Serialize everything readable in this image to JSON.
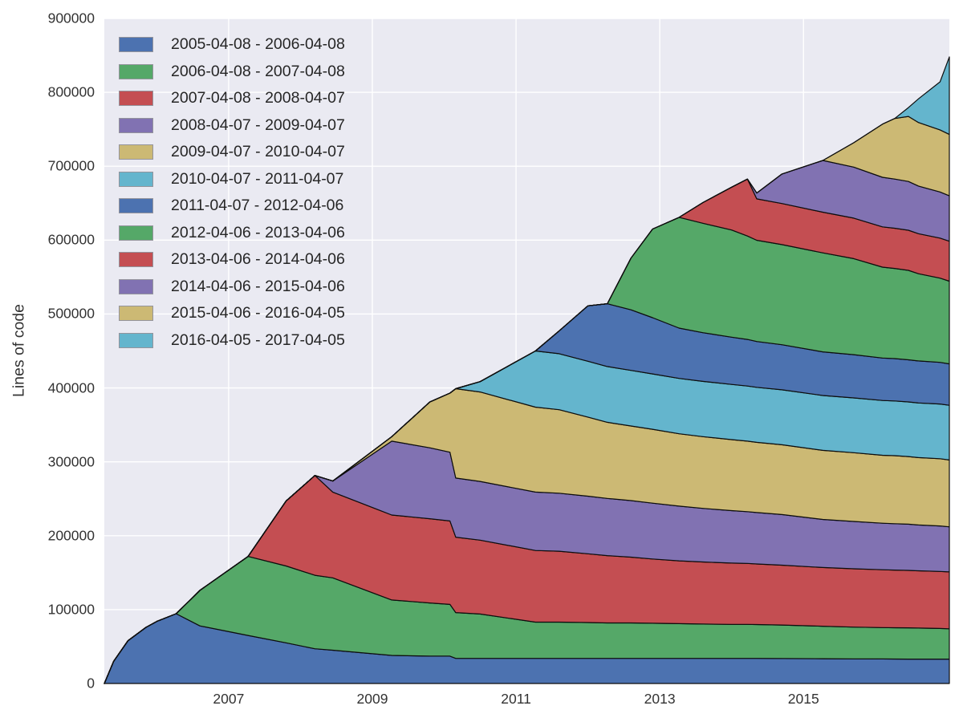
{
  "figure": {
    "plot_background": "#EAEAF2",
    "grid_color": "#FFFFFF",
    "band_edge_color": "#0d0d0d",
    "text_color": "#333333",
    "legend_swatch_border": "#94949c"
  },
  "axes": {
    "ylabel": "Lines of code",
    "x_domain": [
      2005.27,
      2017.03
    ],
    "y_domain": [
      0,
      900000
    ],
    "y_ticks": [
      {
        "value": 0,
        "label": "0"
      },
      {
        "value": 100000,
        "label": "100000"
      },
      {
        "value": 200000,
        "label": "200000"
      },
      {
        "value": 300000,
        "label": "300000"
      },
      {
        "value": 400000,
        "label": "400000"
      },
      {
        "value": 500000,
        "label": "500000"
      },
      {
        "value": 600000,
        "label": "600000"
      },
      {
        "value": 700000,
        "label": "700000"
      },
      {
        "value": 800000,
        "label": "800000"
      },
      {
        "value": 900000,
        "label": "900000"
      }
    ],
    "x_ticks": [
      {
        "value": 2007,
        "label": "2007"
      },
      {
        "value": 2009,
        "label": "2009"
      },
      {
        "value": 2011,
        "label": "2011"
      },
      {
        "value": 2013,
        "label": "2013"
      },
      {
        "value": 2015,
        "label": "2015"
      }
    ]
  },
  "chart_data": {
    "type": "area",
    "stacked": true,
    "title": "",
    "xlabel": "",
    "ylabel": "Lines of code",
    "grid": true,
    "legend_position": "upper left",
    "x_unit": "decimal_year",
    "x": [
      2005.27,
      2005.4,
      2005.6,
      2005.85,
      2006.0,
      2006.27,
      2006.6,
      2007.27,
      2007.8,
      2008.2,
      2008.45,
      2009.27,
      2009.8,
      2010.08,
      2010.16,
      2010.5,
      2011.27,
      2011.6,
      2012.0,
      2012.27,
      2012.6,
      2012.9,
      2013.27,
      2013.6,
      2014.0,
      2014.22,
      2014.35,
      2014.7,
      2015.27,
      2015.7,
      2016.1,
      2016.27,
      2016.46,
      2016.6,
      2016.9,
      2017.03
    ],
    "series": [
      {
        "name": "2005-04-08 - 2006-04-08",
        "color": "#4C72B0",
        "values": [
          0,
          30000,
          58000,
          76000,
          84000,
          94500,
          78000,
          65000,
          55000,
          47000,
          45000,
          38000,
          37000,
          37000,
          34000,
          34000,
          34000,
          34000,
          34000,
          34000,
          34000,
          34000,
          34000,
          34000,
          34000,
          34000,
          34000,
          33800,
          33500,
          33300,
          33200,
          33100,
          33000,
          33000,
          33000,
          33000
        ]
      },
      {
        "name": "2006-04-08 - 2007-04-08",
        "color": "#55A868",
        "values": [
          0,
          0,
          0,
          0,
          0,
          0,
          48000,
          107000,
          104000,
          99500,
          98000,
          75000,
          72000,
          70000,
          62000,
          60000,
          49000,
          49000,
          48500,
          48000,
          48000,
          47500,
          47000,
          46500,
          46000,
          46000,
          45800,
          45300,
          44000,
          43000,
          42500,
          42400,
          42300,
          42000,
          41500,
          41000
        ]
      },
      {
        "name": "2007-04-08 - 2008-04-07",
        "color": "#C44E52",
        "values": [
          0,
          0,
          0,
          0,
          0,
          0,
          0,
          0,
          88000,
          135000,
          116000,
          115000,
          114000,
          113000,
          102000,
          100000,
          97000,
          96000,
          93000,
          91000,
          89000,
          87000,
          85000,
          84000,
          83000,
          82500,
          82000,
          81000,
          79500,
          79000,
          78200,
          78000,
          77800,
          77500,
          77200,
          77000
        ]
      },
      {
        "name": "2008-04-07 - 2009-04-07",
        "color": "#8172B2",
        "values": [
          0,
          0,
          0,
          0,
          0,
          0,
          0,
          0,
          0,
          0,
          15000,
          100000,
          96000,
          93000,
          80000,
          79500,
          79000,
          78500,
          78000,
          77500,
          76500,
          75500,
          74000,
          72500,
          71000,
          70000,
          69500,
          68500,
          65000,
          64000,
          63000,
          62800,
          62500,
          62000,
          61500,
          61000
        ]
      },
      {
        "name": "2009-04-07 - 2010-04-07",
        "color": "#CCB974",
        "values": [
          0,
          0,
          0,
          0,
          0,
          0,
          0,
          0,
          0,
          0,
          0,
          6000,
          62000,
          80000,
          121000,
          121000,
          115000,
          113000,
          107000,
          103000,
          101000,
          100000,
          98000,
          97000,
          96000,
          95500,
          95000,
          94500,
          93500,
          93000,
          92000,
          92000,
          91500,
          91200,
          91000,
          90500
        ]
      },
      {
        "name": "2010-04-07 - 2011-04-07",
        "color": "#64B5CD",
        "values": [
          0,
          0,
          0,
          0,
          0,
          0,
          0,
          0,
          0,
          0,
          0,
          0,
          0,
          0,
          0,
          14000,
          76000,
          75800,
          75600,
          75400,
          75200,
          75000,
          74900,
          74800,
          74700,
          74600,
          74500,
          74400,
          74300,
          74200,
          74100,
          74100,
          74000,
          74000,
          74000,
          74000
        ]
      },
      {
        "name": "2011-04-07 - 2012-04-06",
        "color": "#4C72B0",
        "values": [
          0,
          0,
          0,
          0,
          0,
          0,
          0,
          0,
          0,
          0,
          0,
          0,
          0,
          0,
          0,
          0,
          0,
          31000,
          75000,
          85000,
          82000,
          76000,
          68000,
          66000,
          64000,
          63000,
          62000,
          61000,
          59000,
          58500,
          57500,
          57300,
          57000,
          56800,
          56400,
          56000
        ]
      },
      {
        "name": "2012-04-06 - 2013-04-06",
        "color": "#55A868",
        "values": [
          0,
          0,
          0,
          0,
          0,
          0,
          0,
          0,
          0,
          0,
          0,
          0,
          0,
          0,
          0,
          0,
          0,
          0,
          0,
          0,
          70000,
          120000,
          150000,
          148000,
          145000,
          140000,
          137000,
          135500,
          134000,
          130000,
          123000,
          122000,
          121000,
          118000,
          114000,
          112000
        ]
      },
      {
        "name": "2013-04-06 - 2014-04-06",
        "color": "#C44E52",
        "values": [
          0,
          0,
          0,
          0,
          0,
          0,
          0,
          0,
          0,
          0,
          0,
          0,
          0,
          0,
          0,
          0,
          0,
          0,
          0,
          0,
          0,
          0,
          0,
          28000,
          58000,
          77000,
          56000,
          55500,
          55000,
          54800,
          54500,
          54400,
          54300,
          54200,
          54100,
          54000
        ]
      },
      {
        "name": "2014-04-06 - 2015-04-06",
        "color": "#8172B2",
        "values": [
          0,
          0,
          0,
          0,
          0,
          0,
          0,
          0,
          0,
          0,
          0,
          0,
          0,
          0,
          0,
          0,
          0,
          0,
          0,
          0,
          0,
          0,
          0,
          0,
          0,
          0,
          8000,
          40000,
          70000,
          69000,
          67000,
          66500,
          66000,
          64500,
          62500,
          61500
        ]
      },
      {
        "name": "2015-04-06 - 2016-04-05",
        "color": "#CCB974",
        "values": [
          0,
          0,
          0,
          0,
          0,
          0,
          0,
          0,
          0,
          0,
          0,
          0,
          0,
          0,
          0,
          0,
          0,
          0,
          0,
          0,
          0,
          0,
          0,
          0,
          0,
          0,
          0,
          0,
          0,
          33000,
          72000,
          82000,
          88000,
          86000,
          84000,
          83000
        ]
      },
      {
        "name": "2016-04-05 - 2017-04-05",
        "color": "#64B5CD",
        "values": [
          0,
          0,
          0,
          0,
          0,
          0,
          0,
          0,
          0,
          0,
          0,
          0,
          0,
          0,
          0,
          0,
          0,
          0,
          0,
          0,
          0,
          0,
          0,
          0,
          0,
          0,
          0,
          0,
          0,
          0,
          0,
          0,
          12000,
          32000,
          65000,
          105000
        ]
      }
    ]
  }
}
